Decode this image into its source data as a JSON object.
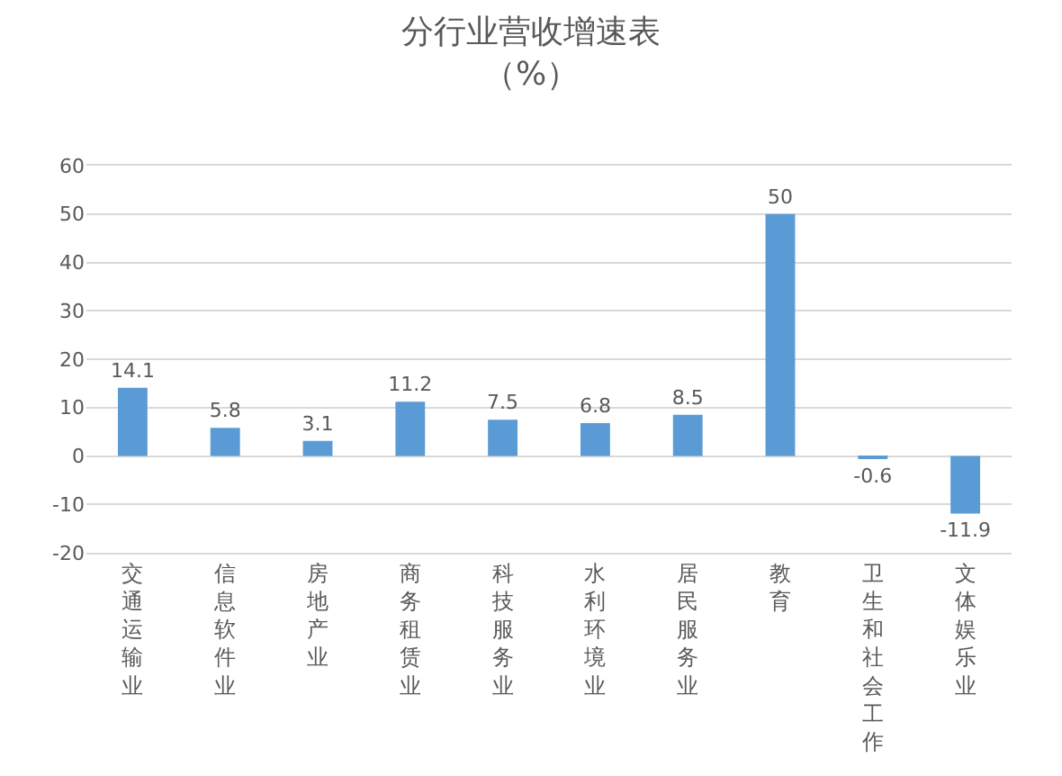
{
  "chart_data": {
    "type": "bar",
    "title": "分行业营收增速表",
    "subtitle": "（%）",
    "categories": [
      "交通运输业",
      "信息软件业",
      "房地产业",
      "商务租赁业",
      "科技服务业",
      "水利环境业",
      "居民服务业",
      "教育",
      "卫生和社会工作",
      "文体娱乐业"
    ],
    "values": [
      14.1,
      5.8,
      3.1,
      11.2,
      7.5,
      6.8,
      8.5,
      50,
      -0.6,
      -11.9
    ],
    "color": "#5b9bd5",
    "ylim": [
      -20,
      60
    ],
    "yticks": [
      -20,
      -10,
      0,
      10,
      20,
      30,
      40,
      50,
      60
    ],
    "grid": "y",
    "data_labels": true
  }
}
